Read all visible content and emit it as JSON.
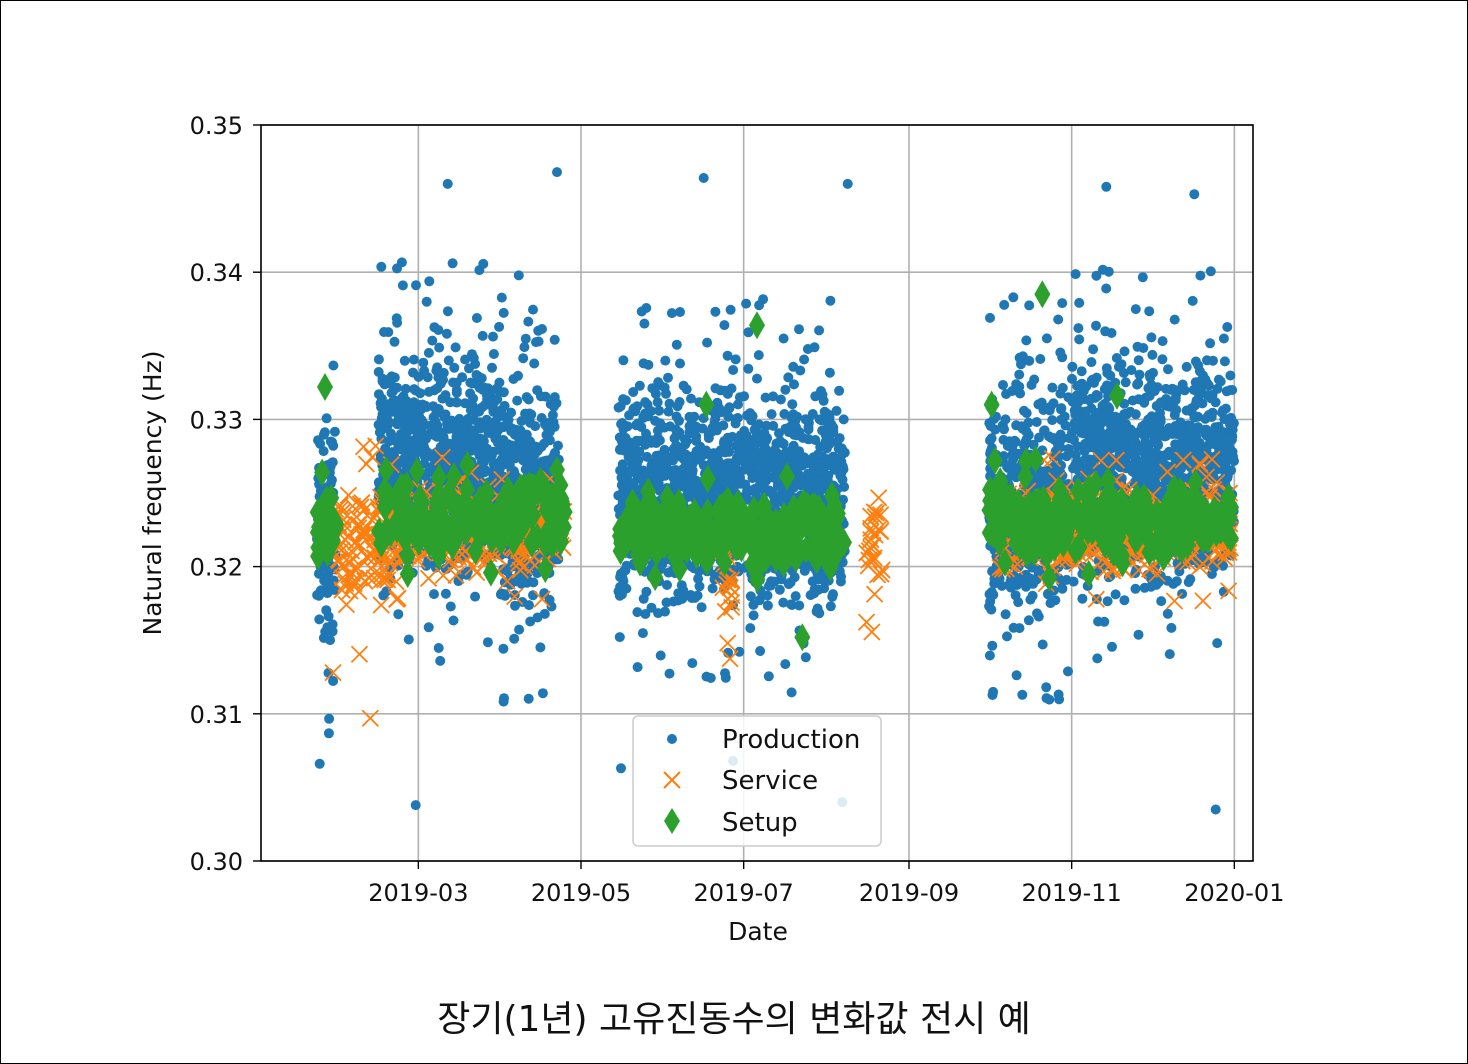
{
  "caption": "장기(1년) 고유진동수의 변화값 전시 예",
  "chart_data": {
    "type": "scatter",
    "xlabel": "Date",
    "ylabel": "Natural frequency (Hz)",
    "xlim": [
      "2019-01-01",
      "2020-01-08"
    ],
    "ylim": [
      0.3,
      0.35
    ],
    "x_ticks": [
      "2019-03",
      "2019-05",
      "2019-07",
      "2019-09",
      "2019-11",
      "2020-01"
    ],
    "y_ticks": [
      "0.30",
      "0.31",
      "0.32",
      "0.33",
      "0.34",
      "0.35"
    ],
    "y_tick_values": [
      0.3,
      0.31,
      0.32,
      0.33,
      0.34,
      0.35
    ],
    "x_tick_values": [
      "2019-03-01",
      "2019-05-01",
      "2019-07-01",
      "2019-09-01",
      "2019-11-01",
      "2020-01-01"
    ],
    "grid": true,
    "legend_position": "bottom-center",
    "series": [
      {
        "name": "Production",
        "marker": "circle",
        "color": "#1f77b4",
        "segments": [
          {
            "start": "2019-01-22",
            "end": "2019-01-29",
            "center": 0.322,
            "spread": 0.0075
          },
          {
            "start": "2019-02-14",
            "end": "2019-04-01",
            "center": 0.327,
            "spread": 0.007
          },
          {
            "start": "2019-04-01",
            "end": "2019-04-23",
            "center": 0.325,
            "spread": 0.0075
          },
          {
            "start": "2019-05-15",
            "end": "2019-06-30",
            "center": 0.325,
            "spread": 0.0065
          },
          {
            "start": "2019-07-01",
            "end": "2019-08-08",
            "center": 0.3245,
            "spread": 0.007
          },
          {
            "start": "2019-10-01",
            "end": "2019-10-31",
            "center": 0.3245,
            "spread": 0.007
          },
          {
            "start": "2019-11-01",
            "end": "2020-01-01",
            "center": 0.3265,
            "spread": 0.007
          }
        ],
        "outliers": [
          {
            "x": "2019-02-28",
            "y": 0.3038
          },
          {
            "x": "2019-04-22",
            "y": 0.3468
          },
          {
            "x": "2019-06-16",
            "y": 0.3464
          },
          {
            "x": "2019-08-09",
            "y": 0.346
          },
          {
            "x": "2019-08-07",
            "y": 0.304
          },
          {
            "x": "2019-05-16",
            "y": 0.3063
          },
          {
            "x": "2019-12-25",
            "y": 0.3035
          },
          {
            "x": "2019-11-14",
            "y": 0.3458
          },
          {
            "x": "2019-12-17",
            "y": 0.3453
          },
          {
            "x": "2019-03-12",
            "y": 0.346
          },
          {
            "x": "2019-01-23",
            "y": 0.3066
          },
          {
            "x": "2019-06-27",
            "y": 0.3068
          }
        ]
      },
      {
        "name": "Service",
        "marker": "x",
        "color": "#ff7f0e",
        "segments": [
          {
            "start": "2019-01-28",
            "end": "2019-02-18",
            "center": 0.3215,
            "spread": 0.004
          },
          {
            "start": "2019-02-18",
            "end": "2019-04-25",
            "center": 0.3225,
            "spread": 0.0025
          },
          {
            "start": "2019-06-23",
            "end": "2019-06-27",
            "center": 0.3195,
            "spread": 0.003
          },
          {
            "start": "2019-08-16",
            "end": "2019-08-22",
            "center": 0.3215,
            "spread": 0.0035
          },
          {
            "start": "2019-10-05",
            "end": "2019-12-31",
            "center": 0.3225,
            "spread": 0.0025
          }
        ],
        "outliers": [
          {
            "x": "2019-02-11",
            "y": 0.3097
          },
          {
            "x": "2019-02-13",
            "y": 0.3282
          },
          {
            "x": "2019-01-28",
            "y": 0.3128
          },
          {
            "x": "2019-06-25",
            "y": 0.3148
          },
          {
            "x": "2019-12-19",
            "y": 0.327
          }
        ]
      },
      {
        "name": "Setup",
        "marker": "diamond",
        "color": "#2ca02c",
        "segments": [
          {
            "start": "2019-01-22",
            "end": "2019-01-31",
            "center": 0.3225,
            "spread": 0.0022
          },
          {
            "start": "2019-02-14",
            "end": "2019-04-25",
            "center": 0.3235,
            "spread": 0.0022
          },
          {
            "start": "2019-05-15",
            "end": "2019-08-08",
            "center": 0.3225,
            "spread": 0.0022
          },
          {
            "start": "2019-10-01",
            "end": "2019-12-31",
            "center": 0.323,
            "spread": 0.0022
          }
        ],
        "outliers": [
          {
            "x": "2019-01-25",
            "y": 0.3322
          },
          {
            "x": "2019-07-06",
            "y": 0.3364
          },
          {
            "x": "2019-10-21",
            "y": 0.3385
          },
          {
            "x": "2019-06-17",
            "y": 0.331
          },
          {
            "x": "2019-07-23",
            "y": 0.3152
          },
          {
            "x": "2019-10-02",
            "y": 0.331
          },
          {
            "x": "2019-11-18",
            "y": 0.3316
          }
        ]
      }
    ]
  }
}
